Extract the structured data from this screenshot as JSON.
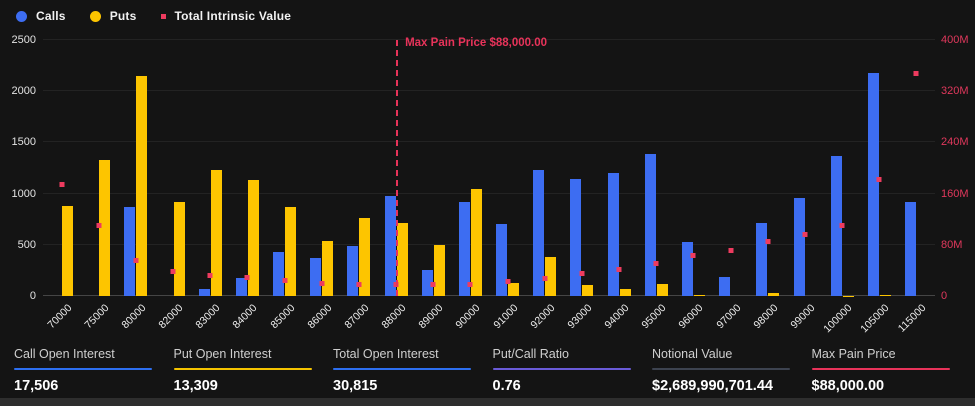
{
  "legend": [
    {
      "name": "calls",
      "label": "Calls",
      "shape": "circle",
      "color": "#3d6df2"
    },
    {
      "name": "puts",
      "label": "Puts",
      "shape": "circle",
      "color": "#fdc500"
    },
    {
      "name": "total-intrinsic-value",
      "label": "Total Intrinsic Value",
      "shape": "square",
      "color": "#ee3b5f"
    }
  ],
  "chart_data": {
    "type": "bar",
    "categories": [
      "70000",
      "75000",
      "80000",
      "82000",
      "83000",
      "84000",
      "85000",
      "86000",
      "87000",
      "88000",
      "89000",
      "90000",
      "91000",
      "92000",
      "93000",
      "94000",
      "95000",
      "96000",
      "97000",
      "98000",
      "99000",
      "100000",
      "105000",
      "115000"
    ],
    "series": [
      {
        "name": "Calls",
        "type": "bar",
        "axis": "left",
        "color": "#3d6df2",
        "values": [
          0,
          0,
          865,
          0,
          68,
          180,
          430,
          368,
          490,
          975,
          250,
          920,
          700,
          1230,
          1140,
          1200,
          1390,
          530,
          190,
          710,
          955,
          1370,
          2180,
          915
        ]
      },
      {
        "name": "Puts",
        "type": "bar",
        "axis": "left",
        "color": "#fdc500",
        "values": [
          880,
          1330,
          2150,
          915,
          1235,
          1130,
          870,
          540,
          765,
          710,
          495,
          1045,
          130,
          385,
          105,
          65,
          115,
          12,
          0,
          33,
          0,
          5,
          12,
          0
        ]
      },
      {
        "name": "Total Intrinsic Value",
        "type": "scatter",
        "axis": "right",
        "color": "#ee3b5f",
        "values_millions": [
          174,
          110,
          55,
          38,
          32,
          28,
          23,
          18,
          17.5,
          16.5,
          17,
          17,
          22,
          27,
          34,
          40,
          50,
          62,
          71,
          84,
          96,
          109,
          182,
          347
        ]
      }
    ],
    "left_axis": {
      "ticks": [
        0,
        500,
        1000,
        1500,
        2000,
        2500
      ],
      "max": 2500
    },
    "right_axis": {
      "tick_labels": [
        "0",
        "80M",
        "160M",
        "240M",
        "320M",
        "400M"
      ],
      "max_millions": 400,
      "color": "#e0385c"
    },
    "max_pain": {
      "category": "88000",
      "label": "Max Pain Price $88,000.00",
      "color": "#e8335a"
    },
    "grid": "horizontal",
    "legend_position": "top-left"
  },
  "stats": [
    {
      "label": "Call Open Interest",
      "value": "17,506",
      "accent": "#2d6ff0"
    },
    {
      "label": "Put Open Interest",
      "value": "13,309",
      "accent": "#f5c400"
    },
    {
      "label": "Total Open Interest",
      "value": "30,815",
      "accent": "#2d6ff0"
    },
    {
      "label": "Put/Call Ratio",
      "value": "0.76",
      "accent": "#6a5bd8"
    },
    {
      "label": "Notional Value",
      "value": "$2,689,990,701.44",
      "accent": "#3d4350"
    },
    {
      "label": "Max Pain Price",
      "value": "$88,000.00",
      "accent": "#e8335a"
    }
  ]
}
